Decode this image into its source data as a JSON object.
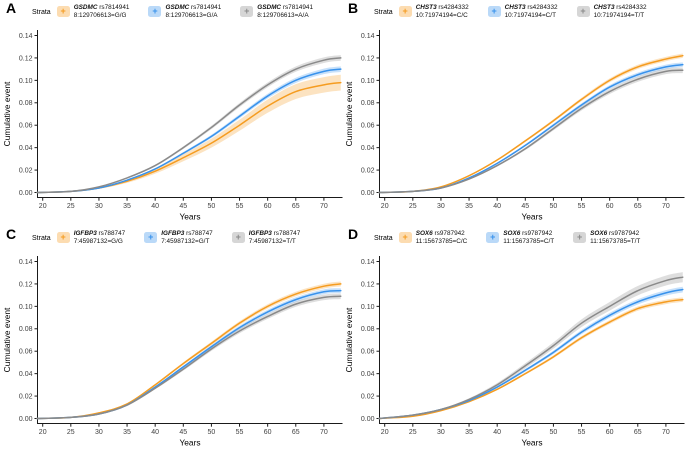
{
  "colors": {
    "orange": "#F59C20",
    "blue": "#3892EC",
    "gray": "#8A8A8A",
    "axis": "#1a1a1a",
    "tick_text": "#404040",
    "label_text": "#000000"
  },
  "chart_data": [
    {
      "panel": "A",
      "type": "line",
      "legend_title": "Strata",
      "xlabel": "Years",
      "ylabel": "Cumulative event",
      "xlim": [
        17.5,
        73.5
      ],
      "ylim": [
        0,
        0.14
      ],
      "grid": false,
      "legend_position": "top",
      "xticks": [
        20,
        25,
        30,
        35,
        40,
        45,
        50,
        55,
        60,
        65,
        70
      ],
      "yticks": [
        0.0,
        0.02,
        0.04,
        0.06,
        0.08,
        0.1,
        0.12,
        0.14
      ],
      "x": [
        19,
        25,
        30,
        35,
        40,
        45,
        50,
        55,
        60,
        65,
        70,
        73
      ],
      "series": [
        {
          "gene": "GSDMC",
          "rsid": "rs7814941",
          "genotype": "8:129706613=G/G",
          "color": "orange",
          "values": [
            0,
            0.001,
            0.004,
            0.01,
            0.019,
            0.031,
            0.044,
            0.06,
            0.077,
            0.09,
            0.096,
            0.098
          ],
          "ci_halfwidth_end": 0.007
        },
        {
          "gene": "GSDMC",
          "rsid": "rs7814941",
          "genotype": "8:129706613=G/A",
          "color": "blue",
          "values": [
            0,
            0.001,
            0.004,
            0.011,
            0.021,
            0.035,
            0.05,
            0.068,
            0.086,
            0.1,
            0.108,
            0.11
          ],
          "ci_halfwidth_end": 0.0025
        },
        {
          "gene": "GSDMC",
          "rsid": "rs7814941",
          "genotype": "8:129706613=A/A",
          "color": "gray",
          "values": [
            0,
            0.001,
            0.005,
            0.013,
            0.024,
            0.04,
            0.058,
            0.078,
            0.096,
            0.11,
            0.118,
            0.12
          ],
          "ci_halfwidth_end": 0.0025
        }
      ]
    },
    {
      "panel": "B",
      "type": "line",
      "legend_title": "Strata",
      "xlabel": "Years",
      "ylabel": "Cumulative event",
      "xlim": [
        17.5,
        73.5
      ],
      "ylim": [
        0,
        0.14
      ],
      "grid": false,
      "legend_position": "top",
      "xticks": [
        20,
        25,
        30,
        35,
        40,
        45,
        50,
        55,
        60,
        65,
        70
      ],
      "yticks": [
        0.0,
        0.02,
        0.04,
        0.06,
        0.08,
        0.1,
        0.12,
        0.14
      ],
      "x": [
        19,
        25,
        30,
        35,
        40,
        45,
        50,
        55,
        60,
        65,
        70,
        73
      ],
      "series": [
        {
          "gene": "CHST3",
          "rsid": "rs4284332",
          "genotype": "10:71974194=C/C",
          "color": "orange",
          "values": [
            0,
            0.001,
            0.005,
            0.015,
            0.029,
            0.046,
            0.064,
            0.083,
            0.1,
            0.112,
            0.119,
            0.122
          ],
          "ci_halfwidth_end": 0.002
        },
        {
          "gene": "CHST3",
          "rsid": "rs4284332",
          "genotype": "10:71974194=C/T",
          "color": "blue",
          "values": [
            0,
            0.001,
            0.004,
            0.013,
            0.026,
            0.042,
            0.06,
            0.078,
            0.094,
            0.105,
            0.112,
            0.114
          ],
          "ci_halfwidth_end": 0.002
        },
        {
          "gene": "CHST3",
          "rsid": "rs4284332",
          "genotype": "10:71974194=T/T",
          "color": "gray",
          "values": [
            0,
            0.001,
            0.004,
            0.012,
            0.024,
            0.039,
            0.057,
            0.075,
            0.09,
            0.101,
            0.108,
            0.109
          ],
          "ci_halfwidth_end": 0.0025
        }
      ]
    },
    {
      "panel": "C",
      "type": "line",
      "legend_title": "Strata",
      "xlabel": "Years",
      "ylabel": "Cumulative event",
      "xlim": [
        17.5,
        73.5
      ],
      "ylim": [
        0,
        0.14
      ],
      "grid": false,
      "legend_position": "top",
      "xticks": [
        20,
        25,
        30,
        35,
        40,
        45,
        50,
        55,
        60,
        65,
        70
      ],
      "yticks": [
        0.0,
        0.02,
        0.04,
        0.06,
        0.08,
        0.1,
        0.12,
        0.14
      ],
      "x": [
        19,
        25,
        30,
        35,
        40,
        45,
        50,
        55,
        60,
        65,
        70,
        73
      ],
      "series": [
        {
          "gene": "IGFBP3",
          "rsid": "rs788747",
          "genotype": "7:45987132=G/G",
          "color": "orange",
          "values": [
            0,
            0.001,
            0.005,
            0.013,
            0.03,
            0.049,
            0.067,
            0.085,
            0.1,
            0.111,
            0.118,
            0.12
          ],
          "ci_halfwidth_end": 0.0022
        },
        {
          "gene": "IGFBP3",
          "rsid": "rs788747",
          "genotype": "7:45987132=G/T",
          "color": "blue",
          "values": [
            0,
            0.001,
            0.004,
            0.012,
            0.028,
            0.046,
            0.064,
            0.081,
            0.095,
            0.106,
            0.113,
            0.114
          ],
          "ci_halfwidth_end": 0.0022
        },
        {
          "gene": "IGFBP3",
          "rsid": "rs788747",
          "genotype": "7:45987132=T/T",
          "color": "gray",
          "values": [
            0,
            0.001,
            0.004,
            0.012,
            0.027,
            0.044,
            0.062,
            0.078,
            0.091,
            0.102,
            0.108,
            0.109
          ],
          "ci_halfwidth_end": 0.0025
        }
      ]
    },
    {
      "panel": "D",
      "type": "line",
      "legend_title": "Strata",
      "xlabel": "Years",
      "ylabel": "Cumulative event",
      "xlim": [
        17.5,
        73.5
      ],
      "ylim": [
        0,
        0.14
      ],
      "grid": false,
      "legend_position": "top",
      "xticks": [
        20,
        25,
        30,
        35,
        40,
        45,
        50,
        55,
        60,
        65,
        70
      ],
      "yticks": [
        0.0,
        0.02,
        0.04,
        0.06,
        0.08,
        0.1,
        0.12,
        0.14
      ],
      "x": [
        19,
        25,
        30,
        35,
        40,
        45,
        50,
        55,
        60,
        65,
        70,
        73
      ],
      "series": [
        {
          "gene": "SOX6",
          "rsid": "rs9787942",
          "genotype": "11:15673785=C/C",
          "color": "orange",
          "values": [
            0,
            0.002,
            0.007,
            0.015,
            0.026,
            0.04,
            0.055,
            0.072,
            0.086,
            0.098,
            0.104,
            0.106
          ],
          "ci_halfwidth_end": 0.002
        },
        {
          "gene": "SOX6",
          "rsid": "rs9787942",
          "genotype": "11:15673785=C/T",
          "color": "blue",
          "values": [
            0,
            0.003,
            0.008,
            0.016,
            0.028,
            0.043,
            0.059,
            0.077,
            0.092,
            0.104,
            0.112,
            0.115
          ],
          "ci_halfwidth_end": 0.0025
        },
        {
          "gene": "SOX6",
          "rsid": "rs9787942",
          "genotype": "11:15673785=T/T",
          "color": "gray",
          "values": [
            0,
            0.003,
            0.008,
            0.017,
            0.03,
            0.047,
            0.065,
            0.085,
            0.1,
            0.114,
            0.123,
            0.126
          ],
          "ci_halfwidth_end": 0.0045
        }
      ]
    }
  ]
}
